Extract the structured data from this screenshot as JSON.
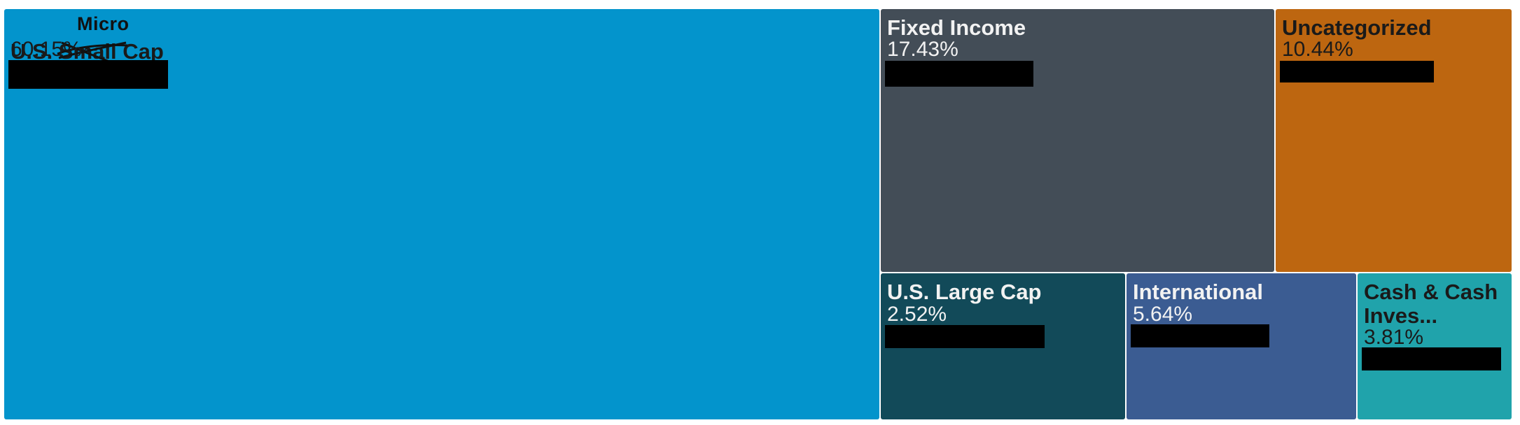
{
  "chart_data": {
    "type": "treemap",
    "tiles": [
      {
        "id": "us-small-cap",
        "label": "U.S. Small Cap",
        "label_parts": {
          "before": "U.S. ",
          "struck": "Small",
          "after": " Cap"
        },
        "handwritten_correction": "Micro",
        "percent": "60.15%",
        "value": 60.15,
        "color": "#0394cc",
        "text_color": "dark"
      },
      {
        "id": "fixed-income",
        "label": "Fixed Income",
        "percent": "17.43%",
        "value": 17.43,
        "color": "#434d57",
        "text_color": "light"
      },
      {
        "id": "uncategorized",
        "label": "Uncategorized",
        "percent": "10.44%",
        "value": 10.44,
        "color": "#bd6610",
        "text_color": "dark"
      },
      {
        "id": "us-large-cap",
        "label": "U.S. Large Cap",
        "percent": "2.52%",
        "value": 2.52,
        "color": "#124a59",
        "text_color": "light"
      },
      {
        "id": "international",
        "label": "International",
        "percent": "5.64%",
        "value": 5.64,
        "color": "#3b5c92",
        "text_color": "light"
      },
      {
        "id": "cash",
        "label": "Cash & Cash\nInves...",
        "percent": "3.81%",
        "value": 3.81,
        "color": "#20a3ab",
        "text_color": "dark"
      }
    ]
  }
}
